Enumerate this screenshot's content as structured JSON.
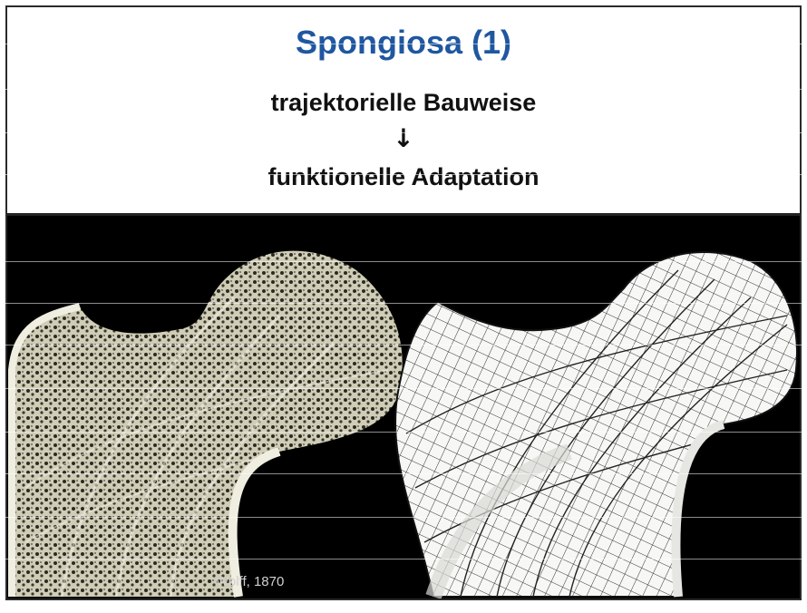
{
  "slide": {
    "title": "Spongiosa (1)",
    "line1": "trajektorielle Bauweise",
    "arrow": "↓",
    "line2": "funktionelle Adaptation",
    "credit": "Wolff, 1870"
  },
  "colors": {
    "title": "#1f57a0",
    "background": "#000000",
    "bone": "#d9d8c4"
  },
  "icons": [
    "bone-photo",
    "trajectory-drawing"
  ]
}
